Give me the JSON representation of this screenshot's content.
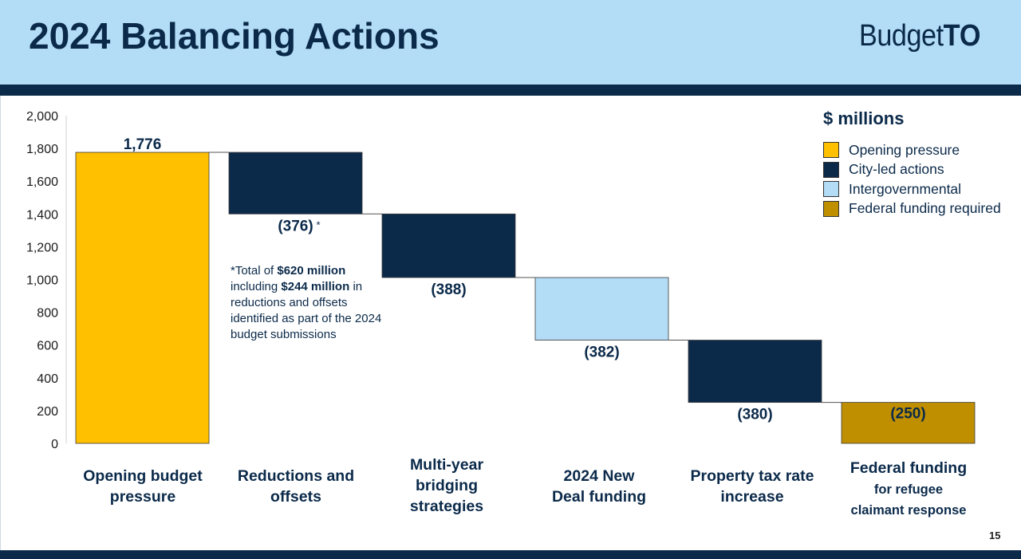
{
  "page": {
    "title": "2024 Balancing Actions",
    "logo_text": "Budget",
    "logo_bold": "TO",
    "page_number": "15"
  },
  "legend": {
    "title": "$ millions",
    "items": [
      {
        "label": "Opening pressure",
        "color": "#ffc000"
      },
      {
        "label": "City-led actions",
        "color": "#0b2a4a"
      },
      {
        "label": "Intergovernmental",
        "color": "#b3dcf6"
      },
      {
        "label": "Federal funding required",
        "color": "#bf8f00"
      }
    ]
  },
  "note": {
    "prefix": "*Total of ",
    "bold1": "$620 million",
    "middle": "including ",
    "bold2": "$244 million",
    "suffix": "in reductions and offsets identified as part of the 2024 budget submissions"
  },
  "chart_data": {
    "type": "bar",
    "subtype": "waterfall",
    "title": "2024 Balancing Actions",
    "unit": "$ millions",
    "ylim": [
      0,
      2000
    ],
    "yticks": [
      "2,000",
      "1,800",
      "1,600",
      "1,400",
      "1,200",
      "1,000",
      "800",
      "600",
      "400",
      "200",
      "0"
    ],
    "ytick_values": [
      2000,
      1800,
      1600,
      1400,
      1200,
      1000,
      800,
      600,
      400,
      200,
      0
    ],
    "categories": [
      {
        "line1": "Opening budget\npressure",
        "line2": ""
      },
      {
        "line1": "Reductions and\noffsets",
        "line2": ""
      },
      {
        "line1": "Multi-year\nbridging\nstrategies",
        "line2": ""
      },
      {
        "line1": "2024 New\nDeal funding",
        "line2": ""
      },
      {
        "line1": "Property tax rate\nincrease",
        "line2": ""
      },
      {
        "line1": "Federal funding",
        "line2": "for refugee\nclaimant response"
      }
    ],
    "bars": [
      {
        "start": 0,
        "end": 1776,
        "label": "1,776",
        "asterisk": "",
        "group": "Opening pressure",
        "color": "#ffc000"
      },
      {
        "start": 1776,
        "end": 1400,
        "label": "(376)",
        "asterisk": "*",
        "group": "City-led actions",
        "color": "#0b2a4a"
      },
      {
        "start": 1400,
        "end": 1012,
        "label": "(388)",
        "asterisk": "",
        "group": "City-led actions",
        "color": "#0b2a4a"
      },
      {
        "start": 1012,
        "end": 630,
        "label": "(382)",
        "asterisk": "",
        "group": "Intergovernmental",
        "color": "#b3dcf6"
      },
      {
        "start": 630,
        "end": 250,
        "label": "(380)",
        "asterisk": "",
        "group": "City-led actions",
        "color": "#0b2a4a"
      },
      {
        "start": 250,
        "end": 0,
        "label": "(250)",
        "asterisk": "",
        "group": "Federal funding required",
        "color": "#bf8f00"
      }
    ]
  }
}
